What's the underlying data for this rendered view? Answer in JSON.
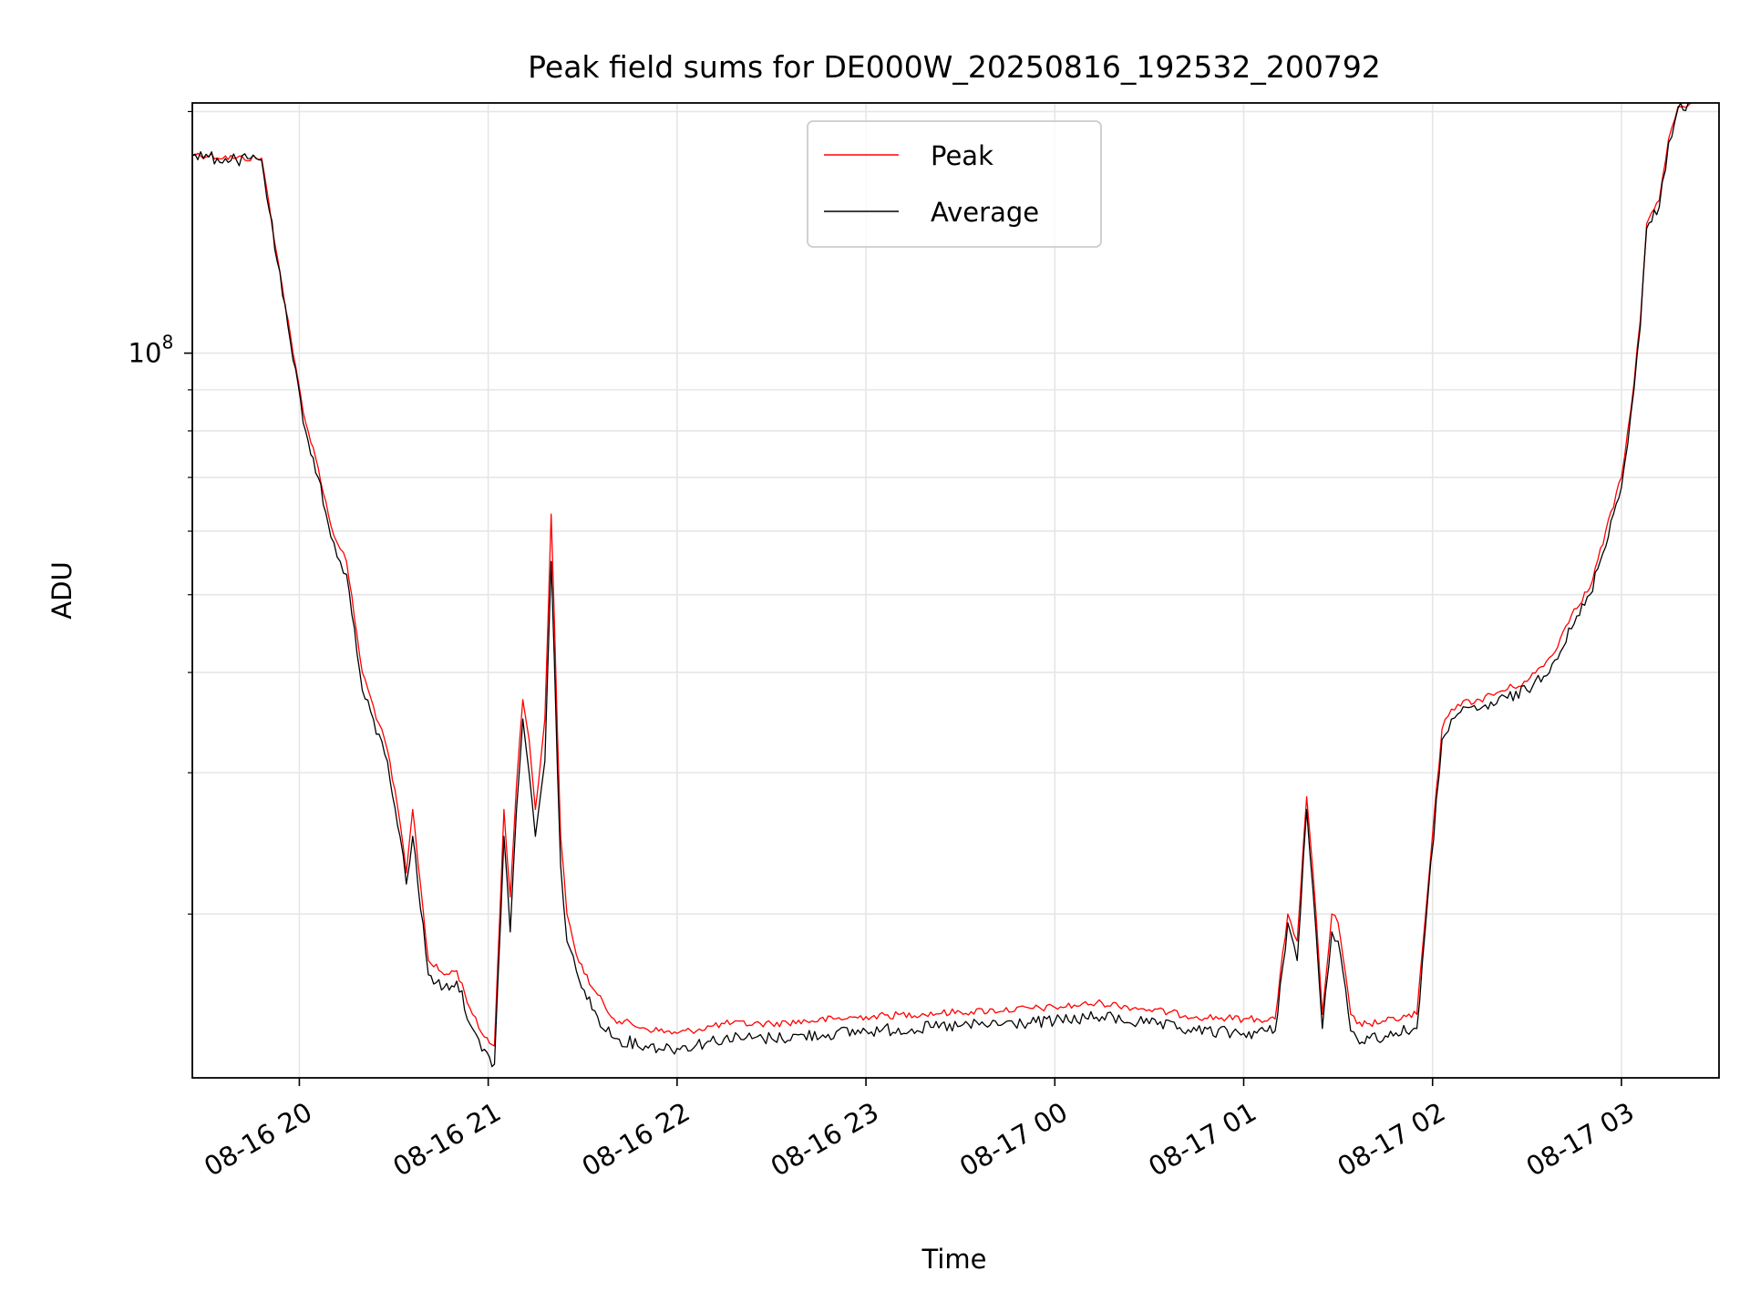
{
  "chart_data": {
    "type": "line",
    "title": "Peak field sums for DE000W_20250816_192532_200792",
    "xlabel": "Time",
    "ylabel": "ADU",
    "y_scale": "log",
    "grid": true,
    "legend_position": "upper center",
    "ylim": [
      12500000,
      205000000
    ],
    "xlim": [
      "2025-08-16 19:26",
      "2025-08-17 03:31"
    ],
    "x_tick_labels": [
      "08-16 20",
      "08-16 21",
      "08-16 22",
      "08-16 23",
      "08-17 00",
      "08-17 01",
      "08-17 02",
      "08-17 03"
    ],
    "x_ticks": [
      "2025-08-16 20:00",
      "2025-08-16 21:00",
      "2025-08-16 22:00",
      "2025-08-16 23:00",
      "2025-08-17 00:00",
      "2025-08-17 01:00",
      "2025-08-17 02:00",
      "2025-08-17 03:00"
    ],
    "y_tick_labels": [
      {
        "base": "10",
        "exp": "8",
        "value": 100000000
      }
    ],
    "series": [
      {
        "name": "Peak",
        "color": "#ff0000",
        "x": [
          "2025-08-16 19:26",
          "2025-08-16 19:40",
          "2025-08-16 19:48",
          "2025-08-16 19:53",
          "2025-08-16 19:58",
          "2025-08-16 20:02",
          "2025-08-16 20:06",
          "2025-08-16 20:10",
          "2025-08-16 20:13",
          "2025-08-16 20:15",
          "2025-08-16 20:20",
          "2025-08-16 20:28",
          "2025-08-16 20:32",
          "2025-08-16 20:34",
          "2025-08-16 20:36",
          "2025-08-16 20:41",
          "2025-08-16 20:46",
          "2025-08-16 20:50",
          "2025-08-16 20:55",
          "2025-08-16 20:58",
          "2025-08-16 21:02",
          "2025-08-16 21:05",
          "2025-08-16 21:07",
          "2025-08-16 21:09",
          "2025-08-16 21:11",
          "2025-08-16 21:13",
          "2025-08-16 21:15",
          "2025-08-16 21:18",
          "2025-08-16 21:20",
          "2025-08-16 21:23",
          "2025-08-16 21:25",
          "2025-08-16 21:28",
          "2025-08-16 21:33",
          "2025-08-16 21:40",
          "2025-08-16 21:50",
          "2025-08-16 22:00",
          "2025-08-16 22:15",
          "2025-08-16 22:30",
          "2025-08-16 23:00",
          "2025-08-16 23:30",
          "2025-08-17 00:00",
          "2025-08-17 00:15",
          "2025-08-17 00:30",
          "2025-08-17 00:45",
          "2025-08-17 01:00",
          "2025-08-17 01:10",
          "2025-08-17 01:14",
          "2025-08-17 01:17",
          "2025-08-17 01:20",
          "2025-08-17 01:23",
          "2025-08-17 01:25",
          "2025-08-17 01:28",
          "2025-08-17 01:30",
          "2025-08-17 01:34",
          "2025-08-17 01:36",
          "2025-08-17 01:40",
          "2025-08-17 01:45",
          "2025-08-17 01:55",
          "2025-08-17 02:03",
          "2025-08-17 02:06",
          "2025-08-17 02:08",
          "2025-08-17 02:15",
          "2025-08-17 02:30",
          "2025-08-17 02:38",
          "2025-08-17 02:45",
          "2025-08-17 02:50",
          "2025-08-17 03:00",
          "2025-08-17 03:03",
          "2025-08-17 03:06",
          "2025-08-17 03:08",
          "2025-08-17 03:12",
          "2025-08-17 03:15",
          "2025-08-17 03:18",
          "2025-08-17 03:22"
        ],
        "y": [
          177000000,
          175000000,
          175000000,
          132000000,
          100000000,
          82000000,
          72000000,
          61000000,
          57000000,
          55000000,
          40000000,
          32000000,
          26000000,
          22500000,
          27000000,
          17500000,
          16800000,
          17000000,
          15000000,
          14200000,
          13700000,
          27000000,
          21000000,
          29000000,
          37000000,
          33000000,
          27000000,
          35000000,
          63000000,
          25000000,
          20000000,
          17800000,
          16200000,
          14800000,
          14400000,
          14200000,
          14600000,
          14600000,
          14900000,
          15100000,
          15300000,
          15500000,
          15200000,
          14900000,
          14800000,
          14800000,
          20000000,
          18500000,
          28000000,
          20000000,
          15000000,
          20000000,
          19500000,
          15000000,
          14600000,
          14600000,
          14700000,
          15000000,
          34000000,
          36000000,
          36500000,
          37000000,
          39000000,
          42000000,
          48000000,
          51000000,
          70000000,
          85000000,
          110000000,
          145000000,
          155000000,
          185000000,
          203000000,
          205000000
        ]
      },
      {
        "name": "Average",
        "color": "#000000",
        "x": [
          "2025-08-16 19:26",
          "2025-08-16 19:40",
          "2025-08-16 19:48",
          "2025-08-16 19:53",
          "2025-08-16 19:58",
          "2025-08-16 20:02",
          "2025-08-16 20:06",
          "2025-08-16 20:10",
          "2025-08-16 20:13",
          "2025-08-16 20:15",
          "2025-08-16 20:20",
          "2025-08-16 20:28",
          "2025-08-16 20:32",
          "2025-08-16 20:34",
          "2025-08-16 20:36",
          "2025-08-16 20:41",
          "2025-08-16 20:46",
          "2025-08-16 20:50",
          "2025-08-16 20:55",
          "2025-08-16 20:58",
          "2025-08-16 21:02",
          "2025-08-16 21:05",
          "2025-08-16 21:07",
          "2025-08-16 21:09",
          "2025-08-16 21:11",
          "2025-08-16 21:13",
          "2025-08-16 21:15",
          "2025-08-16 21:18",
          "2025-08-16 21:20",
          "2025-08-16 21:23",
          "2025-08-16 21:25",
          "2025-08-16 21:28",
          "2025-08-16 21:33",
          "2025-08-16 21:40",
          "2025-08-16 21:50",
          "2025-08-16 22:00",
          "2025-08-16 22:15",
          "2025-08-16 22:30",
          "2025-08-16 23:00",
          "2025-08-16 23:30",
          "2025-08-17 00:00",
          "2025-08-17 00:15",
          "2025-08-17 00:30",
          "2025-08-17 00:45",
          "2025-08-17 01:00",
          "2025-08-17 01:10",
          "2025-08-17 01:14",
          "2025-08-17 01:17",
          "2025-08-17 01:20",
          "2025-08-17 01:23",
          "2025-08-17 01:25",
          "2025-08-17 01:28",
          "2025-08-17 01:30",
          "2025-08-17 01:34",
          "2025-08-17 01:36",
          "2025-08-17 01:40",
          "2025-08-17 01:45",
          "2025-08-17 01:55",
          "2025-08-17 02:03",
          "2025-08-17 02:06",
          "2025-08-17 02:08",
          "2025-08-17 02:15",
          "2025-08-17 02:30",
          "2025-08-17 02:38",
          "2025-08-17 02:45",
          "2025-08-17 02:50",
          "2025-08-17 03:00",
          "2025-08-17 03:03",
          "2025-08-17 03:06",
          "2025-08-17 03:08",
          "2025-08-17 03:12",
          "2025-08-17 03:15",
          "2025-08-17 03:18",
          "2025-08-17 03:22"
        ],
        "y": [
          176000000,
          174000000,
          174000000,
          130000000,
          98000000,
          80000000,
          70000000,
          59000000,
          55000000,
          53000000,
          38000000,
          31000000,
          25000000,
          21800000,
          25000000,
          16800000,
          16200000,
          16500000,
          14400000,
          13500000,
          13000000,
          25000000,
          19000000,
          27000000,
          35000000,
          30000000,
          25000000,
          31000000,
          55000000,
          23000000,
          18500000,
          17000000,
          15200000,
          14000000,
          13700000,
          13600000,
          14000000,
          14000000,
          14300000,
          14500000,
          14700000,
          14900000,
          14600000,
          14300000,
          14200000,
          14300000,
          19500000,
          17500000,
          27000000,
          19000000,
          14400000,
          19000000,
          18500000,
          14300000,
          14000000,
          14000000,
          14100000,
          14400000,
          33000000,
          35000000,
          35500000,
          36000000,
          38000000,
          41000000,
          46000000,
          50000000,
          68000000,
          84000000,
          108000000,
          143000000,
          152000000,
          183000000,
          202000000,
          205000000
        ]
      }
    ]
  }
}
